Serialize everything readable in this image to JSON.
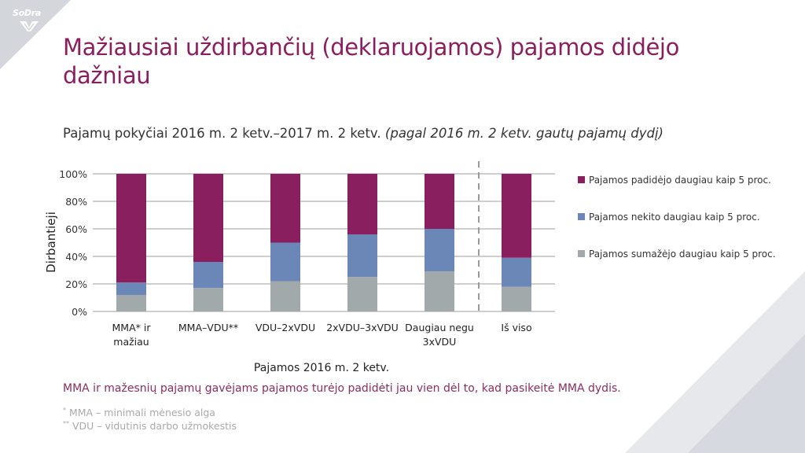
{
  "brand": {
    "logo_text": "SoDra",
    "accent_color": "#8a1f5f",
    "decor_color": "#d3d6db"
  },
  "slide": {
    "title": "Mažiausiai uždirbančių (deklaruojamos) pajamos didėjo dažniau",
    "subtitle_main": "Pajamų pokyčiai 2016 m. 2 ketv.–2017 m. 2 ketv.",
    "subtitle_italic": "(pagal 2016 m. 2 ketv. gautų pajamų dydį)",
    "note": "MMA ir mažesnių pajamų gavėjams pajamos turėjo padidėti jau vien dėl to, kad pasikeitė MMA dydis.",
    "footnotes": [
      {
        "marker": "*",
        "text": "MMA – minimali mėnesio alga"
      },
      {
        "marker": "**",
        "text": "VDU – vidutinis darbo užmokestis"
      }
    ]
  },
  "chart_data": {
    "type": "bar",
    "stacked": true,
    "percent": true,
    "title": "Pajamų pokyčiai 2016 m. 2 ketv.–2017 m. 2 ketv.",
    "xlabel": "Pajamos 2016 m. 2 ketv.",
    "ylabel": "Dirbantieji",
    "ylim": [
      0,
      100
    ],
    "yticks": [
      "0%",
      "20%",
      "40%",
      "60%",
      "80%",
      "100%"
    ],
    "grid": true,
    "legend_position": "right",
    "separator_before_last": true,
    "categories": [
      [
        "MMA* ir",
        "mažiau"
      ],
      [
        "MMA–VDU**"
      ],
      [
        "VDU–2xVDU"
      ],
      [
        "2xVDU–3xVDU"
      ],
      [
        "Daugiau negu",
        "3xVDU"
      ],
      [
        "Iš viso"
      ]
    ],
    "series": [
      {
        "name": "Pajamos sumažėjo daugiau kaip 5 proc.",
        "color": "#a2a9ab",
        "values": [
          12,
          17,
          22,
          25,
          29,
          18
        ]
      },
      {
        "name": "Pajamos nekito daugiau kaip 5 proc.",
        "color": "#6a87b8",
        "values": [
          9,
          19,
          28,
          31,
          31,
          21
        ]
      },
      {
        "name": "Pajamos padidėjo daugiau kaip 5 proc.",
        "color": "#8a1f5f",
        "values": [
          79,
          64,
          50,
          44,
          40,
          61
        ]
      }
    ],
    "legend_order": [
      2,
      1,
      0
    ]
  }
}
